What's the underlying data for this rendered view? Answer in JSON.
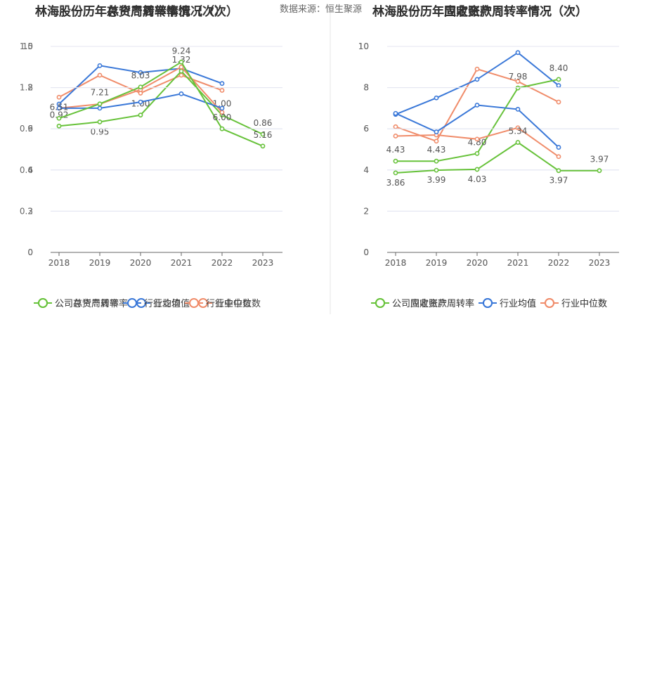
{
  "source_note": "数据来源：恒生聚源",
  "colors": {
    "company": "#67c23a",
    "average": "#3a78d8",
    "median": "#f08c6a",
    "grid": "#e4e6f2",
    "axis": "#666666",
    "divider": "#e6e6e6"
  },
  "chart_data": [
    {
      "type": "line",
      "title": "林海股份历年总资产周转率情况（次）",
      "categories": [
        "2018",
        "2019",
        "2020",
        "2021",
        "2022",
        "2023"
      ],
      "ylim": [
        0,
        1.5
      ],
      "yticks": [
        "0",
        "0.3",
        "0.6",
        "0.9",
        "1.2",
        "1.5"
      ],
      "grid": true,
      "legend_position": "bottom",
      "series": [
        {
          "name": "公司总资产周转率",
          "role": "company",
          "values": [
            0.92,
            0.95,
            1.0,
            1.32,
            1.0,
            0.86
          ],
          "labels": [
            "0.92",
            "0.95",
            "1.00",
            "1.32",
            "1.00",
            "0.86"
          ]
        },
        {
          "name": "行业均值",
          "role": "average",
          "values": [
            1.08,
            1.36,
            1.31,
            1.34,
            1.23,
            null
          ]
        },
        {
          "name": "行业中位数",
          "role": "median",
          "values": [
            1.13,
            1.29,
            1.16,
            1.29,
            1.18,
            null
          ]
        }
      ]
    },
    {
      "type": "line",
      "title": "林海股份历年存货周转率情况（次）",
      "categories": [
        "2018",
        "2019",
        "2020",
        "2021",
        "2022",
        "2023"
      ],
      "ylim": [
        0,
        10
      ],
      "yticks": [
        "0",
        "2",
        "4",
        "6",
        "8",
        "10"
      ],
      "grid": true,
      "legend_position": "bottom",
      "series": [
        {
          "name": "公司存货周转率",
          "role": "company",
          "values": [
            6.51,
            7.21,
            8.03,
            9.24,
            6.0,
            5.16
          ],
          "labels": [
            "6.51",
            "7.21",
            "8.03",
            "9.24",
            "6.00",
            "5.16"
          ]
        },
        {
          "name": "行业均值",
          "role": "average",
          "values": [
            7.0,
            7.0,
            7.3,
            7.7,
            7.0,
            null
          ]
        },
        {
          "name": "行业中位数",
          "role": "median",
          "values": [
            7.0,
            7.2,
            7.9,
            9.0,
            6.8,
            null
          ]
        }
      ]
    },
    {
      "type": "line",
      "title": "林海股份历年固定资产周转率情况（次）",
      "categories": [
        "2018",
        "2019",
        "2020",
        "2021",
        "2022",
        "2023"
      ],
      "ylim": [
        0,
        10
      ],
      "yticks": [
        "0",
        "2",
        "4",
        "6",
        "8",
        "10"
      ],
      "grid": true,
      "legend_position": "bottom",
      "series": [
        {
          "name": "公司固定资产周转率",
          "role": "company",
          "values": [
            4.43,
            4.43,
            4.8,
            7.98,
            8.4,
            null
          ],
          "labels": [
            "4.43",
            "4.43",
            "4.80",
            "7.98",
            "8.40",
            ""
          ]
        },
        {
          "name": "行业均值",
          "role": "average",
          "values": [
            6.7,
            7.5,
            8.4,
            9.7,
            8.1,
            null
          ]
        },
        {
          "name": "行业中位数",
          "role": "median",
          "values": [
            6.1,
            5.4,
            8.9,
            8.3,
            7.3,
            null
          ]
        }
      ]
    },
    {
      "type": "line",
      "title": "林海股份历年应收账款周转率情况（次）",
      "categories": [
        "2018",
        "2019",
        "2020",
        "2021",
        "2022",
        "2023"
      ],
      "ylim": [
        0,
        10
      ],
      "yticks": [
        "0",
        "2",
        "4",
        "6",
        "8",
        "10"
      ],
      "grid": true,
      "legend_position": "bottom",
      "series": [
        {
          "name": "公司应收账款周转率",
          "role": "company",
          "values": [
            3.86,
            3.99,
            4.03,
            5.34,
            3.97,
            3.97
          ],
          "labels": [
            "3.86",
            "3.99",
            "4.03",
            "5.34",
            "3.97",
            "3.97"
          ]
        },
        {
          "name": "行业均值",
          "role": "average",
          "values": [
            6.75,
            5.85,
            7.15,
            6.95,
            5.1,
            null
          ]
        },
        {
          "name": "行业中位数",
          "role": "median",
          "values": [
            5.65,
            5.7,
            5.5,
            6.05,
            4.65,
            null
          ]
        }
      ]
    }
  ]
}
